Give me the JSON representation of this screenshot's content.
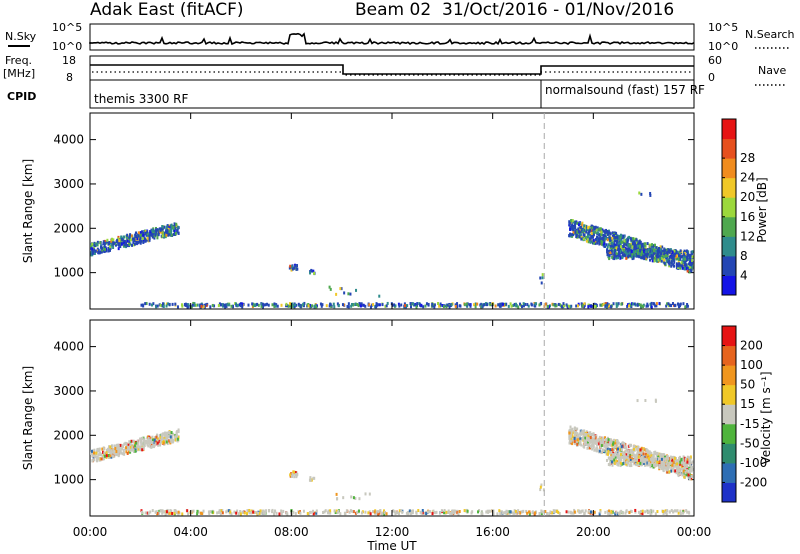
{
  "header": {
    "station": "Adak East (fitACF)",
    "beam": "Beam 02",
    "dates": "31/Oct/2016 - 01/Nov/2016"
  },
  "top_panels": {
    "nsky": {
      "label": "N.Sky",
      "right_label": "N.Search",
      "ticks_left": [
        "10^5",
        "10^0"
      ],
      "ticks_right": [
        "10^5",
        "10^0"
      ]
    },
    "freq": {
      "label": "Freq.",
      "unit": "[MHz]",
      "ticks_left": [
        "18",
        "8"
      ],
      "ticks_right": [
        "60",
        "0"
      ],
      "right_label": "Nave"
    },
    "cpid": {
      "label": "CPID",
      "mode1": "themis 3300 RF",
      "mode2": "normalsound (fast) 157 RF"
    }
  },
  "chart_data": [
    {
      "type": "heatmap",
      "name": "power",
      "ylabel": "Slant Range [km]",
      "xlabel": "Time UT",
      "ylim": [
        180,
        4600
      ],
      "xlim": [
        0,
        24
      ],
      "x_ticks": [
        "00:00",
        "04:00",
        "08:00",
        "12:00",
        "16:00",
        "20:00",
        "00:00"
      ],
      "y_ticks": [
        1000,
        2000,
        3000,
        4000
      ],
      "colorbar": {
        "label": "Power [dB]",
        "ticks": [
          4,
          8,
          12,
          16,
          20,
          24,
          28
        ],
        "colors": [
          "#1414e6",
          "#2446b4",
          "#2f8c8c",
          "#4fa84f",
          "#9cd83c",
          "#f0c828",
          "#f08c1e",
          "#e6501e",
          "#e61414"
        ]
      },
      "mode_change_hour": 18.05
    },
    {
      "type": "heatmap",
      "name": "velocity",
      "ylabel": "Slant Range [km]",
      "xlabel": "Time UT",
      "ylim": [
        180,
        4600
      ],
      "xlim": [
        0,
        24
      ],
      "x_ticks": [
        "00:00",
        "04:00",
        "08:00",
        "12:00",
        "16:00",
        "20:00",
        "00:00"
      ],
      "y_ticks": [
        1000,
        2000,
        3000,
        4000
      ],
      "colorbar": {
        "label": "Velocity [m s⁻¹]",
        "ticks": [
          200,
          100,
          50,
          15,
          -15,
          -50,
          -100,
          -200
        ],
        "colors": [
          "#1e32c8",
          "#2e6eb4",
          "#2f8c6e",
          "#4fb43c",
          "#c8c8be",
          "#f0c828",
          "#f0961e",
          "#e6641e",
          "#e61414"
        ]
      },
      "mode_change_hour": 18.05
    }
  ],
  "x_axis": {
    "label": "Time UT"
  }
}
